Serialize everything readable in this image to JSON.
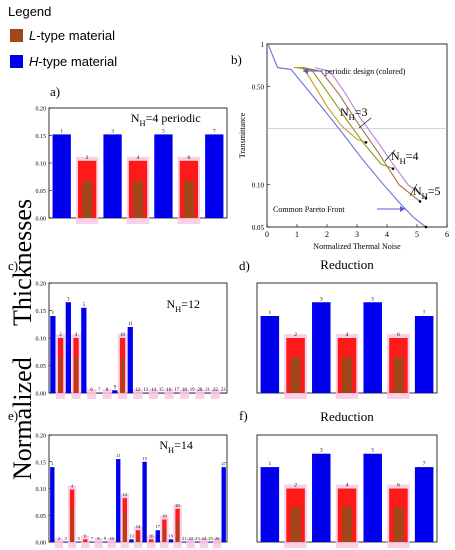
{
  "legend": {
    "title": "Legend",
    "items": [
      {
        "prefix": "L",
        "suffix": "-type material",
        "color": "#a0481a"
      },
      {
        "prefix": "H",
        "suffix": "-type material",
        "color": "#0000ee"
      }
    ]
  },
  "side_label": {
    "line1": "Thicknesses",
    "line2": "Normalized"
  },
  "colors": {
    "h_bar": "#0000ee",
    "l_dark": "#a0481a",
    "l_bright": "#ff1a1a",
    "l_glow": "#f8c8e0",
    "pareto": "#5a5ad0",
    "frontier": "#7070d8"
  },
  "chart_data": [
    {
      "panel": "a)",
      "type": "bar",
      "annotation": "N_H=4 periodic",
      "ylim": [
        0,
        0.2
      ],
      "yticks": [
        "0.00",
        "0.05",
        "0.10",
        "0.15",
        "0.20"
      ],
      "layers": [
        "1",
        "2",
        "3",
        "4",
        "5",
        "6",
        "7"
      ],
      "values": [
        0.152,
        0.104,
        0.152,
        0.104,
        0.152,
        0.104,
        0.152
      ],
      "materials": [
        "H",
        "L",
        "H",
        "L",
        "H",
        "L",
        "H"
      ]
    },
    {
      "panel": "b)",
      "type": "line",
      "xlabel": "Normalized Thermal Noise",
      "ylabel": "Transmittance",
      "xlim": [
        0,
        6
      ],
      "ylim": [
        0.05,
        1
      ],
      "yscale": "log",
      "xticks": [
        "0",
        "1",
        "2",
        "3",
        "4",
        "5",
        "6"
      ],
      "yticks": [
        "0.05",
        "0.10",
        "0.50",
        "1"
      ],
      "annotations": [
        "periodic design (colored)",
        "N_H=3",
        "N_H=4",
        "N_H=5",
        "Common Pareto Front"
      ],
      "series": [
        {
          "color": "#7070d8",
          "x": [
            0.05,
            0.35,
            0.8,
            1.4,
            2.0,
            2.6,
            3.2,
            3.8,
            4.4,
            4.9,
            5.3
          ],
          "y": [
            0.98,
            0.68,
            0.66,
            0.46,
            0.32,
            0.22,
            0.15,
            0.105,
            0.075,
            0.058,
            0.05
          ]
        },
        {
          "color": "#c8a020",
          "x": [
            0.9,
            1.2,
            1.6,
            2.0,
            2.5,
            3.0,
            3.3
          ],
          "y": [
            0.68,
            0.68,
            0.5,
            0.36,
            0.26,
            0.21,
            0.2
          ]
        },
        {
          "color": "#8a9a20",
          "x": [
            1.0,
            1.5,
            2.0,
            2.6,
            3.2,
            3.8,
            4.2
          ],
          "y": [
            0.68,
            0.65,
            0.46,
            0.3,
            0.2,
            0.14,
            0.13
          ]
        },
        {
          "color": "#b07040",
          "x": [
            1.2,
            1.8,
            2.4,
            3.0,
            3.7,
            4.4,
            5.1
          ],
          "y": [
            0.68,
            0.64,
            0.44,
            0.28,
            0.17,
            0.1,
            0.076
          ]
        },
        {
          "color": "#b088d8",
          "x": [
            1.6,
            2.1,
            2.6,
            3.1,
            3.7,
            4.2,
            4.7,
            5.3
          ],
          "y": [
            0.68,
            0.64,
            0.45,
            0.3,
            0.2,
            0.14,
            0.1,
            0.08
          ]
        }
      ]
    },
    {
      "panel": "c)",
      "type": "bar",
      "annotation": "N_H=12",
      "ylim": [
        0,
        0.2
      ],
      "yticks": [
        "0.00",
        "0.05",
        "0.10",
        "0.15",
        "0.20"
      ],
      "layers": [
        "1",
        "2",
        "3",
        "4",
        "5",
        "6",
        "7",
        "8",
        "9",
        "10",
        "11",
        "12",
        "13",
        "14",
        "15",
        "16",
        "17",
        "18",
        "19",
        "20",
        "21",
        "22",
        "23"
      ],
      "values": [
        0.14,
        0.1,
        0.165,
        0.1,
        0.155,
        0.0,
        0.0,
        0.0,
        0.005,
        0.1,
        0.12,
        0.0,
        0.0,
        0.0,
        0.0,
        0.0,
        0.0,
        0.0,
        0.0,
        0.0,
        0.0,
        0.0,
        0.0
      ],
      "materials": [
        "H",
        "L",
        "H",
        "L",
        "H",
        "L",
        "H",
        "L",
        "H",
        "L",
        "H",
        "L",
        "H",
        "L",
        "H",
        "L",
        "H",
        "L",
        "H",
        "L",
        "H",
        "L",
        "H"
      ]
    },
    {
      "panel": "d)",
      "type": "bar",
      "title": "Reduction",
      "layers": [
        "1",
        "2",
        "3",
        "4",
        "5",
        "6",
        "7"
      ],
      "values": [
        0.14,
        0.1,
        0.165,
        0.1,
        0.165,
        0.1,
        0.14
      ],
      "materials": [
        "H",
        "L",
        "H",
        "L",
        "H",
        "L",
        "H"
      ]
    },
    {
      "panel": "e)",
      "type": "bar",
      "annotation": "N_H=14",
      "ylim": [
        0,
        0.2
      ],
      "yticks": [
        "0.00",
        "0.05",
        "0.10",
        "0.15",
        "0.20"
      ],
      "layers": [
        "1",
        "2",
        "3",
        "4",
        "5",
        "6",
        "7",
        "8",
        "9",
        "10",
        "11",
        "12",
        "13",
        "14",
        "15",
        "16",
        "17",
        "18",
        "19",
        "20",
        "21",
        "22",
        "23",
        "24",
        "25",
        "26",
        "27"
      ],
      "values": [
        0.14,
        0.0,
        0.0,
        0.098,
        0.0,
        0.005,
        0.0,
        0.0,
        0.0,
        0.0,
        0.155,
        0.082,
        0.005,
        0.022,
        0.15,
        0.005,
        0.022,
        0.042,
        0.005,
        0.062,
        0.0,
        0.0,
        0.0,
        0.0,
        0.0,
        0.0,
        0.14
      ],
      "materials": [
        "H",
        "L",
        "H",
        "L",
        "H",
        "L",
        "H",
        "L",
        "H",
        "L",
        "H",
        "L",
        "H",
        "L",
        "H",
        "L",
        "H",
        "L",
        "H",
        "L",
        "H",
        "L",
        "H",
        "L",
        "H",
        "L",
        "H"
      ]
    },
    {
      "panel": "f)",
      "type": "bar",
      "title": "Reduction",
      "layers": [
        "1",
        "2",
        "3",
        "4",
        "5",
        "6",
        "7"
      ],
      "values": [
        0.14,
        0.1,
        0.165,
        0.1,
        0.165,
        0.1,
        0.14
      ],
      "materials": [
        "H",
        "L",
        "H",
        "L",
        "H",
        "L",
        "H"
      ]
    }
  ]
}
